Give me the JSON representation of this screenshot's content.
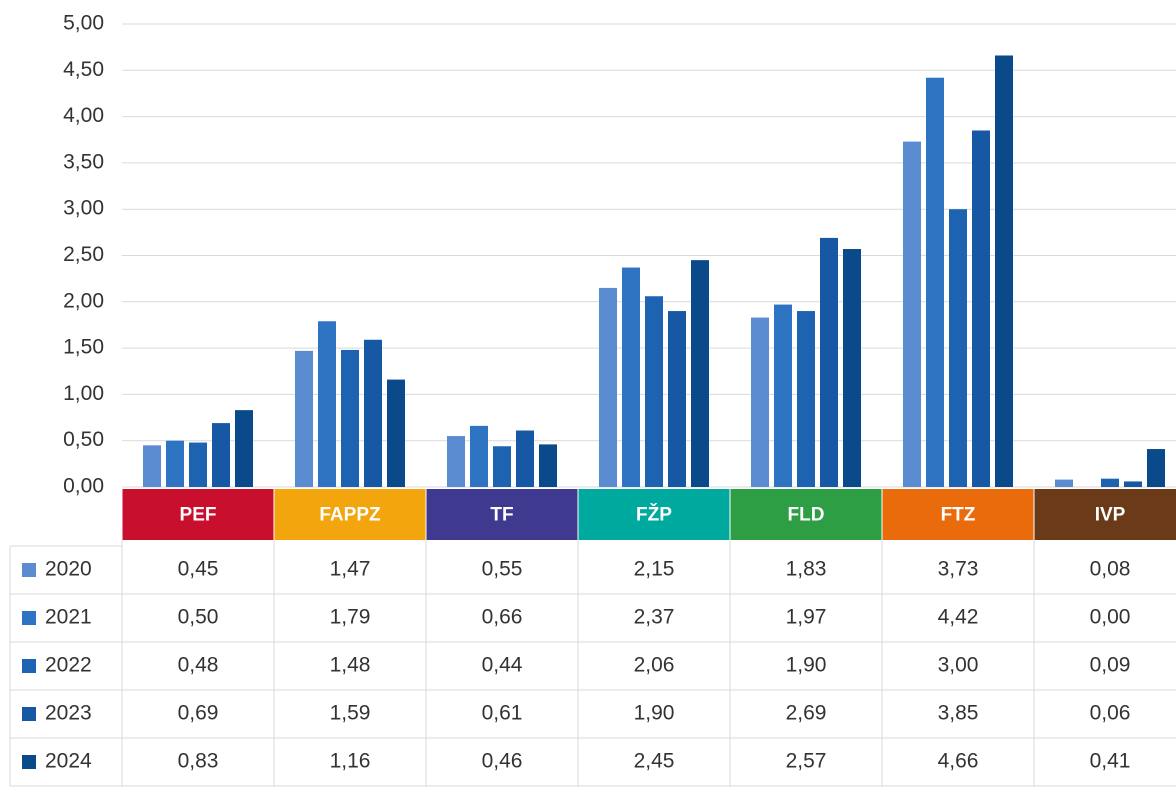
{
  "chart_data": {
    "type": "bar",
    "categories": [
      "PEF",
      "FAPPZ",
      "TF",
      "FŽP",
      "FLD",
      "FTZ",
      "IVP"
    ],
    "category_colors": [
      "#c8102e",
      "#f3a50d",
      "#3f3a8f",
      "#00a99d",
      "#2e9e44",
      "#ea6b0c",
      "#6b3a18"
    ],
    "series": [
      {
        "name": "2020",
        "color": "#5b8bd0",
        "values": [
          0.45,
          1.47,
          0.55,
          2.15,
          1.83,
          3.73,
          0.08
        ],
        "value_labels": [
          "0,45",
          "1,47",
          "0,55",
          "2,15",
          "1,83",
          "3,73",
          "0,08"
        ]
      },
      {
        "name": "2021",
        "color": "#2f74c3",
        "values": [
          0.5,
          1.79,
          0.66,
          2.37,
          1.97,
          4.42,
          0.0
        ],
        "value_labels": [
          "0,50",
          "1,79",
          "0,66",
          "2,37",
          "1,97",
          "4,42",
          "0,00"
        ]
      },
      {
        "name": "2022",
        "color": "#1e62b2",
        "values": [
          0.48,
          1.48,
          0.44,
          2.06,
          1.9,
          3.0,
          0.09
        ],
        "value_labels": [
          "0,48",
          "1,48",
          "0,44",
          "2,06",
          "1,90",
          "3,00",
          "0,09"
        ]
      },
      {
        "name": "2023",
        "color": "#1658a3",
        "values": [
          0.69,
          1.59,
          0.61,
          1.9,
          2.69,
          3.85,
          0.06
        ],
        "value_labels": [
          "0,69",
          "1,59",
          "0,61",
          "1,90",
          "2,69",
          "3,85",
          "0,06"
        ]
      },
      {
        "name": "2024",
        "color": "#0b4a8a",
        "values": [
          0.83,
          1.16,
          0.46,
          2.45,
          2.57,
          4.66,
          0.41
        ],
        "value_labels": [
          "0,83",
          "1,16",
          "0,46",
          "2,45",
          "2,57",
          "4,66",
          "0,41"
        ]
      }
    ],
    "ylim": [
      0,
      5
    ],
    "yticks": [
      {
        "value": 0,
        "label": "0,00"
      },
      {
        "value": 0.5,
        "label": "0,50"
      },
      {
        "value": 1,
        "label": "1,00"
      },
      {
        "value": 1.5,
        "label": "1,50"
      },
      {
        "value": 2,
        "label": "2,00"
      },
      {
        "value": 2.5,
        "label": "2,50"
      },
      {
        "value": 3,
        "label": "3,00"
      },
      {
        "value": 3.5,
        "label": "3,50"
      },
      {
        "value": 4,
        "label": "4,00"
      },
      {
        "value": 4.5,
        "label": "4,50"
      },
      {
        "value": 5,
        "label": "5,00"
      }
    ],
    "grid": true
  }
}
